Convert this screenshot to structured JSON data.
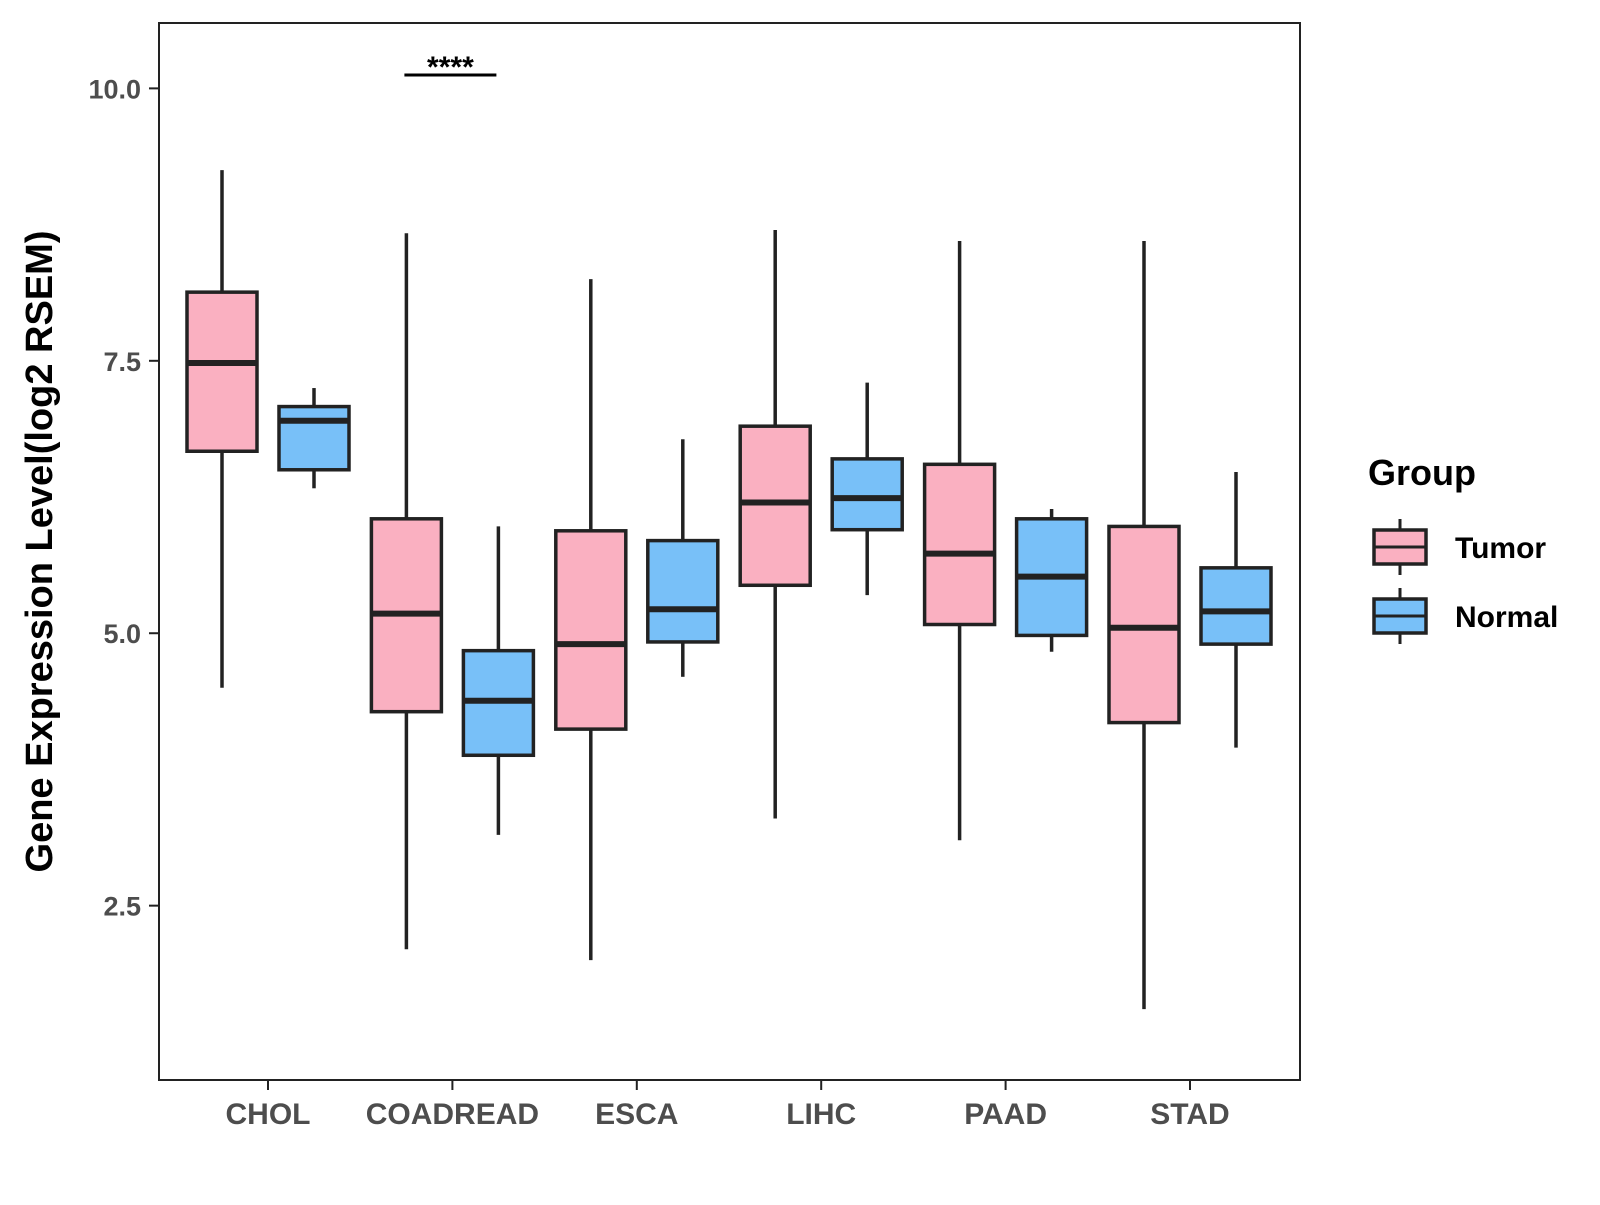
{
  "chart_data": {
    "type": "boxplot",
    "title": "",
    "xlabel": "",
    "ylabel": "Gene Expression Level(log2 RSEM)",
    "ylim": [
      0.9,
      10.6
    ],
    "yticks": [
      2.5,
      5.0,
      7.5,
      10.0
    ],
    "ytick_labels": [
      "2.5",
      "5.0",
      "7.5",
      "10.0"
    ],
    "categories": [
      "CHOL",
      "COADREAD",
      "ESCA",
      "LIHC",
      "PAAD",
      "STAD"
    ],
    "legend": {
      "title": "Group",
      "position": "right",
      "entries": [
        "Tumor",
        "Normal"
      ]
    },
    "series": [
      {
        "name": "Tumor",
        "color": "#fab0c1",
        "boxes": [
          {
            "min": 4.5,
            "q1": 6.67,
            "median": 7.48,
            "q3": 8.13,
            "max": 9.25
          },
          {
            "min": 2.1,
            "q1": 4.28,
            "median": 5.18,
            "q3": 6.05,
            "max": 8.67
          },
          {
            "min": 2.0,
            "q1": 4.12,
            "median": 4.9,
            "q3": 5.94,
            "max": 8.25
          },
          {
            "min": 3.3,
            "q1": 5.44,
            "median": 6.2,
            "q3": 6.9,
            "max": 8.7
          },
          {
            "min": 3.1,
            "q1": 5.08,
            "median": 5.73,
            "q3": 6.55,
            "max": 8.6
          },
          {
            "min": 1.55,
            "q1": 4.18,
            "median": 5.05,
            "q3": 5.98,
            "max": 8.6
          }
        ]
      },
      {
        "name": "Normal",
        "color": "#78c0f8",
        "boxes": [
          {
            "min": 6.33,
            "q1": 6.5,
            "median": 6.95,
            "q3": 7.08,
            "max": 7.25
          },
          {
            "min": 3.15,
            "q1": 3.88,
            "median": 4.38,
            "q3": 4.84,
            "max": 5.98
          },
          {
            "min": 4.6,
            "q1": 4.92,
            "median": 5.22,
            "q3": 5.85,
            "max": 6.78
          },
          {
            "min": 5.35,
            "q1": 5.95,
            "median": 6.24,
            "q3": 6.6,
            "max": 7.3
          },
          {
            "min": 4.83,
            "q1": 4.98,
            "median": 5.52,
            "q3": 6.05,
            "max": 6.14
          },
          {
            "min": 3.95,
            "q1": 4.9,
            "median": 5.2,
            "q3": 5.6,
            "max": 6.48
          }
        ]
      }
    ],
    "annotations": [
      {
        "category": "COADREAD",
        "text": "****"
      }
    ]
  }
}
